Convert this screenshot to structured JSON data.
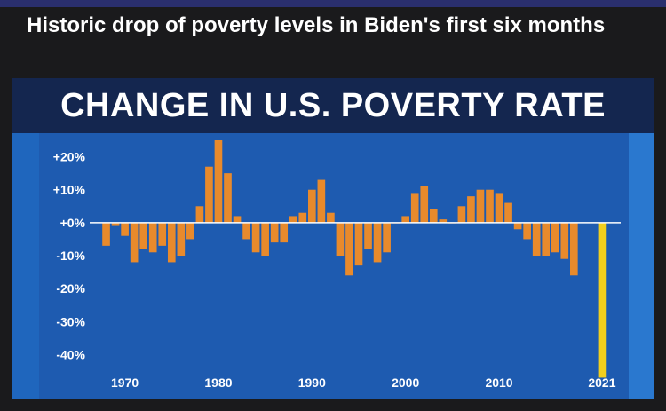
{
  "headline": "Historic drop of poverty levels in Biden's first six months",
  "colors": {
    "bar": "#e88a2c",
    "highlight": "#f2cf1d",
    "zero_line": "#ffffff",
    "plot_bg": "#1e5bb0",
    "band": "#14264f"
  },
  "chart_data": {
    "type": "bar",
    "title": "CHANGE IN U.S. POVERTY RATE",
    "xlabel": "",
    "ylabel": "",
    "ylim": [
      -45,
      25
    ],
    "xlim": [
      1967,
      2023
    ],
    "grid": false,
    "y_ticks": [
      {
        "value": 20,
        "label": "+20%"
      },
      {
        "value": 10,
        "label": "+10%"
      },
      {
        "value": 0,
        "label": "+0%"
      },
      {
        "value": -10,
        "label": "-10%"
      },
      {
        "value": -20,
        "label": "-20%"
      },
      {
        "value": -30,
        "label": "-30%"
      },
      {
        "value": -40,
        "label": "-40%"
      }
    ],
    "x_ticks": [
      {
        "value": 1970,
        "label": "1970"
      },
      {
        "value": 1980,
        "label": "1980"
      },
      {
        "value": 1990,
        "label": "1990"
      },
      {
        "value": 2000,
        "label": "2000"
      },
      {
        "value": 2010,
        "label": "2010"
      },
      {
        "value": 2021,
        "label": "2021"
      }
    ],
    "x": [
      1968,
      1969,
      1970,
      1971,
      1972,
      1973,
      1974,
      1975,
      1976,
      1977,
      1978,
      1979,
      1980,
      1981,
      1982,
      1983,
      1984,
      1985,
      1986,
      1987,
      1988,
      1989,
      1990,
      1991,
      1992,
      1993,
      1994,
      1995,
      1996,
      1997,
      1998,
      1999,
      2000,
      2001,
      2002,
      2003,
      2004,
      2005,
      2006,
      2007,
      2008,
      2009,
      2010,
      2011,
      2012,
      2013,
      2014,
      2015,
      2016,
      2017,
      2018,
      2021
    ],
    "values": [
      -7,
      -1,
      -4,
      -12,
      -8,
      -9,
      -7,
      -12,
      -10,
      -5,
      5,
      17,
      25,
      15,
      2,
      -5,
      -9,
      -10,
      -6,
      -6,
      2,
      3,
      10,
      13,
      3,
      -10,
      -16,
      -13,
      -8,
      -12,
      -9,
      0,
      2,
      9,
      11,
      4,
      1,
      0,
      5,
      8,
      10,
      10,
      9,
      6,
      -2,
      -5,
      -10,
      -10,
      -9,
      -11,
      -16,
      -47
    ],
    "highlight": [
      2021
    ]
  }
}
